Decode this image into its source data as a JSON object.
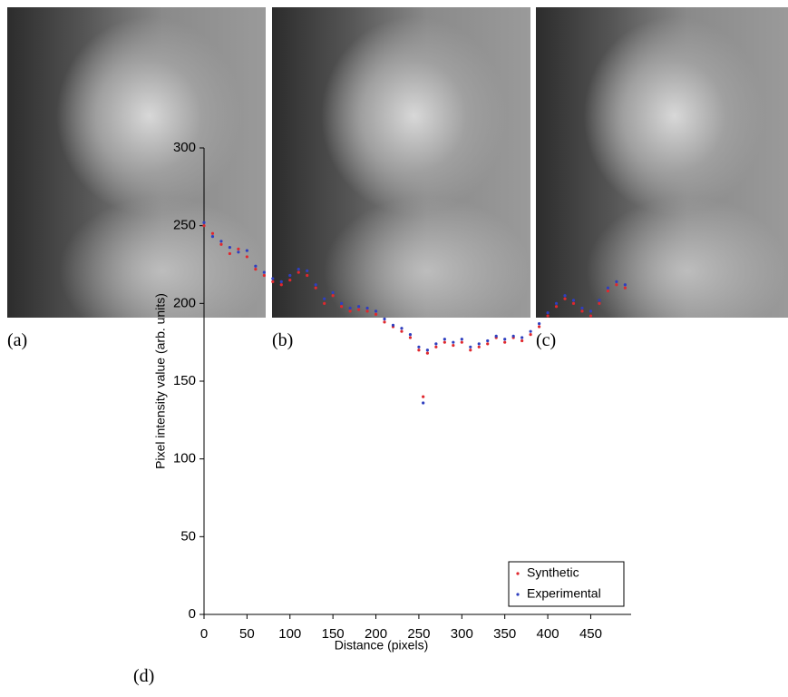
{
  "panels": [
    {
      "label": "(a)"
    },
    {
      "label": "(b)"
    },
    {
      "label": "(c)"
    }
  ],
  "chart_data": {
    "type": "scatter",
    "label": "(d)",
    "x_label": "Distance (pixels)",
    "y_label": "Pixel intensity value (arb. units)",
    "x": [
      0,
      10,
      20,
      30,
      40,
      50,
      60,
      70,
      80,
      90,
      100,
      110,
      120,
      130,
      140,
      150,
      160,
      170,
      180,
      190,
      200,
      210,
      220,
      230,
      240,
      250,
      255,
      260,
      270,
      280,
      290,
      300,
      310,
      320,
      330,
      340,
      350,
      360,
      370,
      380,
      390,
      400,
      410,
      420,
      430,
      440,
      450,
      460,
      470,
      480,
      490
    ],
    "series": [
      {
        "name": "Synthetic",
        "color": "#e0282e",
        "values": [
          250,
          245,
          238,
          232,
          235,
          230,
          222,
          218,
          214,
          212,
          215,
          220,
          218,
          210,
          200,
          205,
          198,
          195,
          196,
          195,
          193,
          188,
          185,
          182,
          178,
          170,
          140,
          168,
          172,
          175,
          173,
          175,
          170,
          172,
          174,
          178,
          175,
          178,
          176,
          180,
          185,
          192,
          198,
          203,
          200,
          195,
          192,
          200,
          208,
          212,
          210
        ]
      },
      {
        "name": "Experimental",
        "color": "#2f3fbf",
        "values": [
          252,
          243,
          240,
          236,
          233,
          234,
          224,
          220,
          216,
          214,
          218,
          222,
          221,
          212,
          203,
          207,
          200,
          197,
          198,
          197,
          195,
          190,
          186,
          184,
          180,
          172,
          136,
          170,
          174,
          177,
          175,
          177,
          172,
          174,
          176,
          179,
          177,
          179,
          178,
          182,
          187,
          194,
          200,
          205,
          202,
          197,
          195,
          202,
          210,
          214,
          212
        ]
      }
    ],
    "xlim": [
      0,
      497
    ],
    "ylim": [
      0,
      300
    ],
    "xticks": [
      0,
      50,
      100,
      150,
      200,
      250,
      300,
      350,
      400,
      450
    ],
    "yticks": [
      0,
      50,
      100,
      150,
      200,
      250,
      300
    ],
    "legend": "lower right"
  }
}
